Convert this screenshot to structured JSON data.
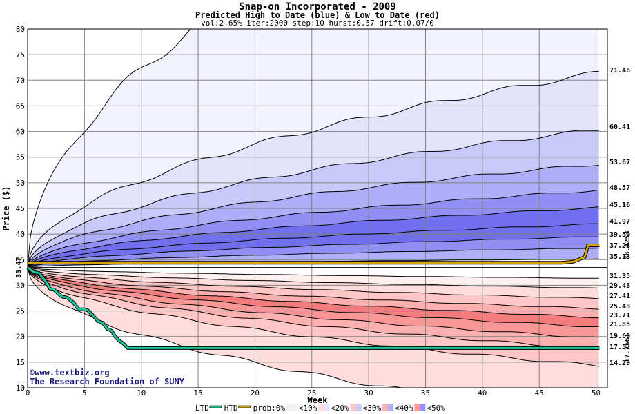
{
  "colors": {
    "htd": "#d4a400",
    "ltd": "#19c79a",
    "blue_bands": [
      "#f3f3ff",
      "#e3e3fb",
      "#c9c9f9",
      "#aeaef9",
      "#9090f4",
      "#7070ee"
    ],
    "red_bands": [
      "#fff0f0",
      "#ffdddd",
      "#ffc6c6",
      "#fdb0b0",
      "#f99696",
      "#f37c7c"
    ],
    "grid": "#808080",
    "credit_text": "#1a1a7a"
  },
  "chart_data": {
    "type": "line",
    "title": "Snap-on Incorporated - 2009",
    "subtitle": "Predicted High to Date (blue) &  Low to Date (red)",
    "params": "vol:2.65% iter:2000 step:10 hurst:0.57 drift:0.07/0",
    "xlabel": "Week",
    "ylabel": "Price ($)",
    "xlim": [
      0,
      51
    ],
    "ylim": [
      10,
      80
    ],
    "xticks": [
      0,
      5,
      10,
      15,
      20,
      25,
      30,
      35,
      40,
      45,
      50
    ],
    "yticks": [
      10,
      15,
      20,
      25,
      30,
      35,
      40,
      45,
      50,
      55,
      60,
      65,
      70,
      75,
      80
    ],
    "grid": true,
    "start_price": 33.47,
    "start_price_label": "33.47",
    "high_percentile_levels": [
      71.48,
      60.41,
      53.67,
      48.57,
      45.16,
      41.97,
      39.5,
      37.28,
      35.13
    ],
    "high_percentile_labels": [
      "71.48",
      "60.41",
      "53.67",
      "48.57",
      "45.16",
      "41.97",
      "39.50",
      "37.28",
      "35.13"
    ],
    "low_percentile_levels": [
      31.35,
      29.43,
      27.41,
      25.43,
      23.71,
      21.85,
      19.69,
      17.52,
      14.29
    ],
    "low_percentile_labels": [
      "31.35",
      "29.43",
      "27.41",
      "25.43",
      "23.71",
      "21.85",
      "19.69",
      "17.52",
      "14.29"
    ],
    "htd_series": {
      "name": "HTD",
      "x": [
        0,
        1,
        5,
        10,
        20,
        30,
        40,
        47,
        48,
        49,
        49.3,
        50.3
      ],
      "y": [
        34.3,
        34.4,
        34.4,
        34.4,
        34.4,
        34.4,
        34.4,
        34.4,
        34.6,
        35.5,
        37.8,
        37.8
      ]
    },
    "ltd_series": {
      "name": "LTD",
      "x": [
        0,
        0.5,
        1,
        1.5,
        1.8,
        2.0,
        2.3,
        3.0,
        3.5,
        4.0,
        4.5,
        5.0,
        5.3,
        5.8,
        6.2,
        6.6,
        7.0,
        7.4,
        7.7,
        8.1,
        8.4,
        8.8,
        10,
        20,
        30,
        40,
        50.3
      ],
      "y": [
        33.47,
        32.6,
        32.4,
        31.0,
        30.0,
        29.2,
        29.2,
        27.8,
        27.6,
        26.7,
        25.3,
        25.3,
        25.1,
        24.0,
        23.0,
        22.7,
        21.5,
        21.1,
        20.0,
        19.1,
        18.7,
        17.75,
        17.75,
        17.75,
        17.75,
        17.75,
        17.75
      ]
    },
    "htd_final_label": "38.4253",
    "ltd_final_label": "17.7561",
    "credit_line1": "www.textbiz.org",
    "credit_line2": "The Research Foundation of SUNY",
    "credit_symbol": "©",
    "legend": [
      {
        "label": "LTD",
        "kind": "line",
        "color": "ltd"
      },
      {
        "label": "HTD",
        "kind": "line",
        "color": "htd"
      },
      {
        "label": "prob:0%",
        "kind": "text"
      },
      {
        "label": "<10%",
        "kind": "swatch",
        "band": 0
      },
      {
        "label": "<20%",
        "kind": "swatch",
        "band": 1
      },
      {
        "label": "<30%",
        "kind": "swatch",
        "band": 2
      },
      {
        "label": "<40%",
        "kind": "swatch",
        "band": 3
      },
      {
        "label": "<50%",
        "kind": "swatch",
        "band": 4
      }
    ]
  }
}
